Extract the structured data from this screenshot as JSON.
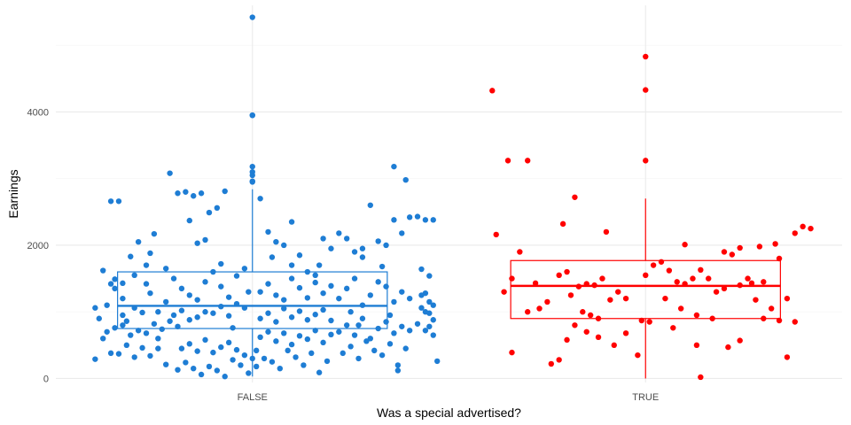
{
  "chart_data": {
    "type": "scatter",
    "subtype": "boxplot-with-jittered-points",
    "xlabel": "Was a special advertised?",
    "ylabel": "Earnings",
    "categories": [
      "FALSE",
      "TRUE"
    ],
    "ylim": [
      -60,
      5600
    ],
    "yticks": [
      0,
      2000,
      4000
    ],
    "grid": true,
    "legend": "none",
    "series": [
      {
        "category": "FALSE",
        "color": "#1E7DD4",
        "box": {
          "min": 30,
          "q1": 750,
          "median": 1090,
          "q3": 1600,
          "whisker_high": 2840,
          "whisker_low": 30
        },
        "outliers": [
          3950,
          3950,
          5420,
          3180,
          3100,
          3050,
          2960,
          2950
        ],
        "points": [
          [
            -0.4,
            1060
          ],
          [
            -0.39,
            900
          ],
          [
            -0.37,
            1100
          ],
          [
            -0.36,
            2660
          ],
          [
            -0.34,
            2660
          ],
          [
            -0.33,
            1430
          ],
          [
            -0.31,
            1830
          ],
          [
            -0.29,
            2050
          ],
          [
            -0.27,
            1700
          ],
          [
            -0.25,
            2170
          ],
          [
            -0.38,
            1620
          ],
          [
            -0.36,
            1420
          ],
          [
            -0.35,
            1490
          ],
          [
            -0.33,
            1200
          ],
          [
            -0.32,
            860
          ],
          [
            -0.3,
            1060
          ],
          [
            -0.28,
            990
          ],
          [
            -0.26,
            1280
          ],
          [
            -0.24,
            1000
          ],
          [
            -0.22,
            1150
          ],
          [
            -0.4,
            290
          ],
          [
            -0.38,
            600
          ],
          [
            -0.36,
            380
          ],
          [
            -0.34,
            370
          ],
          [
            -0.32,
            500
          ],
          [
            -0.3,
            320
          ],
          [
            -0.28,
            460
          ],
          [
            -0.26,
            340
          ],
          [
            -0.24,
            450
          ],
          [
            -0.22,
            210
          ],
          [
            -0.37,
            700
          ],
          [
            -0.35,
            760
          ],
          [
            -0.33,
            800
          ],
          [
            -0.31,
            650
          ],
          [
            -0.29,
            720
          ],
          [
            -0.27,
            680
          ],
          [
            -0.25,
            820
          ],
          [
            -0.23,
            740
          ],
          [
            -0.21,
            860
          ],
          [
            -0.19,
            780
          ],
          [
            -0.21,
            3080
          ],
          [
            -0.19,
            2780
          ],
          [
            -0.17,
            2800
          ],
          [
            -0.15,
            2740
          ],
          [
            -0.13,
            2780
          ],
          [
            -0.11,
            2490
          ],
          [
            -0.09,
            2560
          ],
          [
            -0.07,
            2810
          ],
          [
            -0.16,
            2370
          ],
          [
            -0.14,
            2030
          ],
          [
            -0.2,
            1500
          ],
          [
            -0.18,
            1350
          ],
          [
            -0.16,
            1250
          ],
          [
            -0.14,
            1180
          ],
          [
            -0.12,
            1450
          ],
          [
            -0.1,
            1600
          ],
          [
            -0.08,
            1380
          ],
          [
            -0.06,
            1220
          ],
          [
            -0.04,
            1540
          ],
          [
            -0.02,
            1650
          ],
          [
            -0.2,
            950
          ],
          [
            -0.18,
            1020
          ],
          [
            -0.16,
            880
          ],
          [
            -0.14,
            920
          ],
          [
            -0.12,
            1000
          ],
          [
            -0.1,
            980
          ],
          [
            -0.08,
            1080
          ],
          [
            -0.06,
            940
          ],
          [
            -0.04,
            1120
          ],
          [
            -0.02,
            1060
          ],
          [
            -0.19,
            130
          ],
          [
            -0.17,
            240
          ],
          [
            -0.15,
            150
          ],
          [
            -0.13,
            60
          ],
          [
            -0.11,
            180
          ],
          [
            -0.09,
            120
          ],
          [
            -0.07,
            30
          ],
          [
            -0.05,
            280
          ],
          [
            -0.03,
            200
          ],
          [
            -0.01,
            80
          ],
          [
            -0.18,
            450
          ],
          [
            -0.16,
            520
          ],
          [
            -0.14,
            410
          ],
          [
            -0.12,
            580
          ],
          [
            -0.1,
            390
          ],
          [
            -0.08,
            470
          ],
          [
            -0.06,
            540
          ],
          [
            -0.04,
            430
          ],
          [
            -0.02,
            350
          ],
          [
            0.0,
            300
          ],
          [
            0.02,
            2700
          ],
          [
            0.04,
            2200
          ],
          [
            0.06,
            2050
          ],
          [
            0.08,
            2000
          ],
          [
            0.1,
            1700
          ],
          [
            0.12,
            1850
          ],
          [
            0.14,
            1600
          ],
          [
            0.16,
            1550
          ],
          [
            0.18,
            2100
          ],
          [
            0.2,
            1950
          ],
          [
            0.02,
            1300
          ],
          [
            0.04,
            1420
          ],
          [
            0.06,
            1250
          ],
          [
            0.08,
            1180
          ],
          [
            0.1,
            1500
          ],
          [
            0.12,
            1360
          ],
          [
            0.14,
            1210
          ],
          [
            0.16,
            1440
          ],
          [
            0.18,
            1280
          ],
          [
            0.2,
            1390
          ],
          [
            0.02,
            900
          ],
          [
            0.04,
            980
          ],
          [
            0.06,
            850
          ],
          [
            0.08,
            1050
          ],
          [
            0.1,
            920
          ],
          [
            0.12,
            1010
          ],
          [
            0.14,
            880
          ],
          [
            0.16,
            960
          ],
          [
            0.18,
            1030
          ],
          [
            0.2,
            870
          ],
          [
            0.02,
            620
          ],
          [
            0.04,
            700
          ],
          [
            0.06,
            560
          ],
          [
            0.08,
            680
          ],
          [
            0.1,
            510
          ],
          [
            0.12,
            640
          ],
          [
            0.14,
            590
          ],
          [
            0.16,
            720
          ],
          [
            0.18,
            540
          ],
          [
            0.2,
            660
          ],
          [
            0.01,
            180
          ],
          [
            0.03,
            300
          ],
          [
            0.05,
            250
          ],
          [
            0.07,
            150
          ],
          [
            0.09,
            420
          ],
          [
            0.11,
            320
          ],
          [
            0.13,
            200
          ],
          [
            0.15,
            380
          ],
          [
            0.17,
            90
          ],
          [
            0.19,
            260
          ],
          [
            0.22,
            1200
          ],
          [
            0.24,
            1350
          ],
          [
            0.26,
            1500
          ],
          [
            0.28,
            1100
          ],
          [
            0.3,
            1250
          ],
          [
            0.32,
            1450
          ],
          [
            0.34,
            1380
          ],
          [
            0.36,
            1150
          ],
          [
            0.38,
            1300
          ],
          [
            0.4,
            1200
          ],
          [
            0.22,
            2180
          ],
          [
            0.24,
            2100
          ],
          [
            0.26,
            1900
          ],
          [
            0.28,
            1950
          ],
          [
            0.3,
            2600
          ],
          [
            0.32,
            2060
          ],
          [
            0.34,
            2000
          ],
          [
            0.36,
            2380
          ],
          [
            0.38,
            2180
          ],
          [
            0.4,
            2420
          ],
          [
            0.22,
            700
          ],
          [
            0.24,
            800
          ],
          [
            0.26,
            650
          ],
          [
            0.28,
            900
          ],
          [
            0.3,
            600
          ],
          [
            0.32,
            750
          ],
          [
            0.34,
            850
          ],
          [
            0.36,
            680
          ],
          [
            0.38,
            780
          ],
          [
            0.4,
            720
          ],
          [
            0.23,
            380
          ],
          [
            0.25,
            480
          ],
          [
            0.27,
            300
          ],
          [
            0.29,
            560
          ],
          [
            0.31,
            420
          ],
          [
            0.33,
            350
          ],
          [
            0.35,
            520
          ],
          [
            0.37,
            200
          ],
          [
            0.39,
            450
          ],
          [
            0.37,
            120
          ],
          [
            0.36,
            3180
          ],
          [
            0.39,
            2980
          ],
          [
            0.42,
            2430
          ],
          [
            0.44,
            2380
          ],
          [
            0.46,
            2380
          ],
          [
            0.43,
            1640
          ],
          [
            0.45,
            1540
          ],
          [
            0.44,
            1280
          ],
          [
            0.46,
            1100
          ],
          [
            0.45,
            980
          ],
          [
            0.43,
            1250
          ],
          [
            0.45,
            1150
          ],
          [
            0.44,
            1000
          ],
          [
            0.46,
            880
          ],
          [
            0.42,
            820
          ],
          [
            0.45,
            780
          ],
          [
            0.44,
            720
          ],
          [
            0.46,
            650
          ],
          [
            0.43,
            1060
          ],
          [
            0.47,
            260
          ],
          [
            -0.3,
            1550
          ],
          [
            -0.26,
            1880
          ],
          [
            -0.22,
            1650
          ],
          [
            -0.08,
            1720
          ],
          [
            0.05,
            1820
          ],
          [
            0.17,
            1700
          ],
          [
            0.28,
            1820
          ],
          [
            0.33,
            1680
          ],
          [
            -0.12,
            2080
          ],
          [
            0.1,
            2350
          ],
          [
            -0.35,
            1350
          ],
          [
            -0.27,
            1420
          ],
          [
            -0.01,
            1300
          ],
          [
            0.25,
            1000
          ],
          [
            0.35,
            950
          ],
          [
            -0.33,
            950
          ],
          [
            -0.05,
            760
          ],
          [
            0.27,
            800
          ],
          [
            -0.24,
            600
          ],
          [
            0.01,
            420
          ]
        ]
      },
      {
        "category": "TRUE",
        "color": "#FF0000",
        "box": {
          "min": 0,
          "q1": 900,
          "median": 1390,
          "q3": 1770,
          "whisker_high": 2700,
          "whisker_low": 0
        },
        "outliers": [
          4830,
          4330,
          3270
        ],
        "points": [
          [
            -0.39,
            4320
          ],
          [
            -0.35,
            3270
          ],
          [
            -0.3,
            3270
          ],
          [
            -0.38,
            2160
          ],
          [
            -0.32,
            1900
          ],
          [
            -0.34,
            1500
          ],
          [
            -0.36,
            1300
          ],
          [
            -0.28,
            1430
          ],
          [
            -0.25,
            1150
          ],
          [
            -0.3,
            1000
          ],
          [
            -0.27,
            1050
          ],
          [
            -0.34,
            390
          ],
          [
            -0.21,
            2320
          ],
          [
            -0.18,
            2720
          ],
          [
            -0.1,
            2200
          ],
          [
            -0.15,
            1420
          ],
          [
            -0.17,
            1380
          ],
          [
            -0.19,
            1250
          ],
          [
            -0.13,
            1400
          ],
          [
            -0.11,
            1500
          ],
          [
            -0.22,
            1550
          ],
          [
            -0.2,
            1600
          ],
          [
            -0.09,
            1180
          ],
          [
            -0.07,
            1300
          ],
          [
            -0.05,
            1200
          ],
          [
            -0.16,
            1000
          ],
          [
            -0.14,
            950
          ],
          [
            -0.12,
            900
          ],
          [
            -0.18,
            800
          ],
          [
            -0.15,
            700
          ],
          [
            -0.12,
            620
          ],
          [
            -0.2,
            580
          ],
          [
            -0.22,
            280
          ],
          [
            -0.24,
            220
          ],
          [
            -0.08,
            500
          ],
          [
            -0.02,
            350
          ],
          [
            -0.05,
            680
          ],
          [
            0.0,
            1550
          ],
          [
            0.02,
            1700
          ],
          [
            0.04,
            1750
          ],
          [
            0.06,
            1620
          ],
          [
            0.08,
            1450
          ],
          [
            0.1,
            1420
          ],
          [
            0.12,
            1500
          ],
          [
            0.14,
            1630
          ],
          [
            0.16,
            1500
          ],
          [
            0.18,
            1300
          ],
          [
            0.2,
            1350
          ],
          [
            0.05,
            1200
          ],
          [
            0.09,
            1050
          ],
          [
            0.13,
            950
          ],
          [
            0.17,
            900
          ],
          [
            0.01,
            850
          ],
          [
            0.07,
            760
          ],
          [
            0.24,
            1400
          ],
          [
            0.26,
            1500
          ],
          [
            0.28,
            1180
          ],
          [
            0.3,
            1450
          ],
          [
            0.22,
            1860
          ],
          [
            0.24,
            1960
          ],
          [
            0.29,
            1980
          ],
          [
            0.33,
            2020
          ],
          [
            0.38,
            2180
          ],
          [
            0.42,
            2250
          ],
          [
            0.4,
            2280
          ],
          [
            0.34,
            1800
          ],
          [
            0.27,
            1430
          ],
          [
            0.2,
            1900
          ],
          [
            0.36,
            1200
          ],
          [
            0.32,
            1050
          ],
          [
            0.38,
            850
          ],
          [
            0.3,
            900
          ],
          [
            0.34,
            870
          ],
          [
            0.24,
            570
          ],
          [
            0.21,
            470
          ],
          [
            0.36,
            320
          ],
          [
            0.13,
            500
          ],
          [
            0.14,
            20
          ],
          [
            -0.01,
            870
          ],
          [
            0.1,
            2010
          ]
        ]
      }
    ]
  }
}
